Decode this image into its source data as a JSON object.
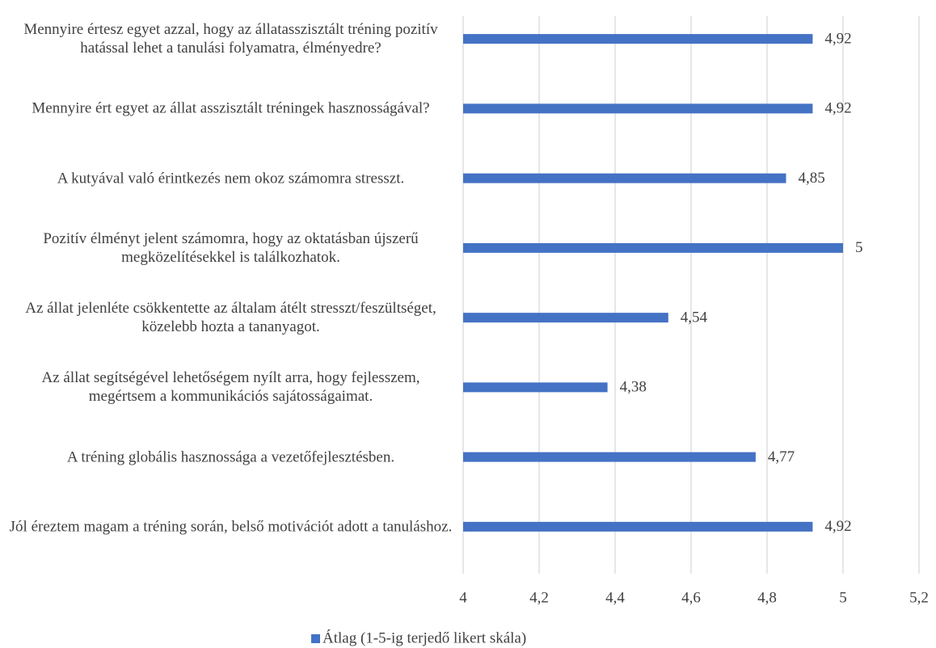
{
  "chart_data": {
    "type": "hbar",
    "categories": [
      "Mennyire értesz egyet azzal, hogy az állatasszisztált tréning pozitív hatással lehet a tanulási folyamatra, élményedre?",
      "Mennyire ért egyet az állat asszisztált tréningek hasznosságával?",
      "A kutyával való érintkezés nem okoz számomra stresszt.",
      "Pozitív élményt jelent számomra, hogy az oktatásban újszerű megközelítésekkel is találkozhatok.",
      "Az állat jelenléte csökkentette az általam átélt stresszt/feszültséget, közelebb hozta a tananyagot.",
      "Az állat segítségével lehetőségem nyílt arra, hogy fejlesszem, megértsem a kommunikációs sajátosságaimat.",
      "A tréning globális hasznossága a vezetőfejlesztésben.",
      "Jól éreztem magam a tréning során, belső motivációt adott a tanuláshoz."
    ],
    "series": [
      {
        "name": "Átlag (1-5-ig terjedő likert skála)",
        "color": "#4472c4",
        "values": [
          4.92,
          4.92,
          4.85,
          5,
          4.54,
          4.38,
          4.77,
          4.92
        ],
        "value_labels": [
          "4,92",
          "4,92",
          "4,85",
          "5",
          "4,54",
          "4,38",
          "4,77",
          "4,92"
        ]
      }
    ],
    "xlim": [
      4,
      5.2
    ],
    "xticks": [
      4,
      {
        "value": 4.2,
        "label": "4,2"
      },
      {
        "value": 4.4,
        "label": "4,4"
      },
      {
        "value": 4.6,
        "label": "4,6"
      },
      {
        "value": 4.8,
        "label": "4,8"
      },
      5,
      {
        "value": 5.2,
        "label": "5,2"
      }
    ],
    "grid": true,
    "legend": "bottom"
  }
}
